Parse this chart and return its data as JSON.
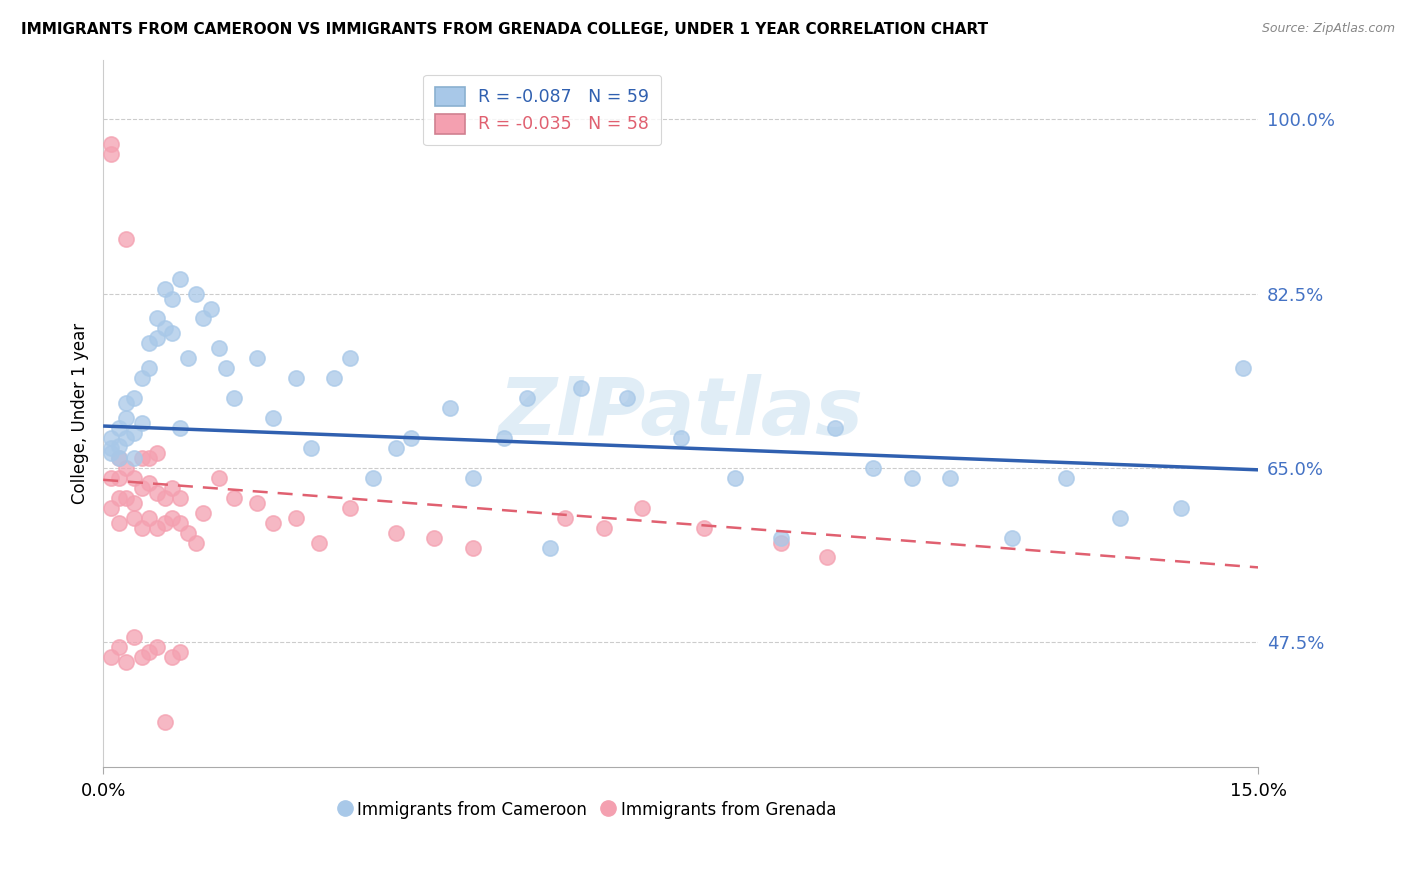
{
  "title": "IMMIGRANTS FROM CAMEROON VS IMMIGRANTS FROM GRENADA COLLEGE, UNDER 1 YEAR CORRELATION CHART",
  "source": "Source: ZipAtlas.com",
  "ylabel": "College, Under 1 year",
  "yticks": [
    0.475,
    0.65,
    0.825,
    1.0
  ],
  "ytick_labels": [
    "47.5%",
    "65.0%",
    "82.5%",
    "100.0%"
  ],
  "xmin": 0.0,
  "xmax": 0.15,
  "ymin": 0.35,
  "ymax": 1.06,
  "legend_blue_r": "R = -0.087",
  "legend_blue_n": "N = 59",
  "legend_pink_r": "R = -0.035",
  "legend_pink_n": "N = 58",
  "blue_color": "#a8c8e8",
  "pink_color": "#f4a0b0",
  "trendline_blue_color": "#3060b0",
  "trendline_pink_color": "#e06070",
  "watermark": "ZIPatlas",
  "blue_trend_x0": 0.0,
  "blue_trend_x1": 0.15,
  "blue_trend_y0": 0.692,
  "blue_trend_y1": 0.648,
  "pink_trend_x0": 0.0,
  "pink_trend_x1": 0.15,
  "pink_trend_y0": 0.638,
  "pink_trend_y1": 0.55,
  "blue_x": [
    0.001,
    0.001,
    0.001,
    0.002,
    0.002,
    0.002,
    0.003,
    0.003,
    0.003,
    0.004,
    0.004,
    0.004,
    0.005,
    0.005,
    0.006,
    0.006,
    0.007,
    0.007,
    0.008,
    0.008,
    0.009,
    0.009,
    0.01,
    0.01,
    0.011,
    0.012,
    0.013,
    0.014,
    0.015,
    0.016,
    0.017,
    0.02,
    0.022,
    0.025,
    0.027,
    0.03,
    0.032,
    0.035,
    0.038,
    0.04,
    0.045,
    0.048,
    0.052,
    0.055,
    0.058,
    0.062,
    0.068,
    0.075,
    0.082,
    0.088,
    0.095,
    0.1,
    0.105,
    0.11,
    0.118,
    0.125,
    0.132,
    0.14,
    0.148
  ],
  "blue_y": [
    0.665,
    0.67,
    0.68,
    0.66,
    0.672,
    0.69,
    0.68,
    0.7,
    0.715,
    0.66,
    0.685,
    0.72,
    0.695,
    0.74,
    0.75,
    0.775,
    0.78,
    0.8,
    0.79,
    0.83,
    0.785,
    0.82,
    0.69,
    0.84,
    0.76,
    0.825,
    0.8,
    0.81,
    0.77,
    0.75,
    0.72,
    0.76,
    0.7,
    0.74,
    0.67,
    0.74,
    0.76,
    0.64,
    0.67,
    0.68,
    0.71,
    0.64,
    0.68,
    0.72,
    0.57,
    0.73,
    0.72,
    0.68,
    0.64,
    0.58,
    0.69,
    0.65,
    0.64,
    0.64,
    0.58,
    0.64,
    0.6,
    0.61,
    0.75
  ],
  "pink_x": [
    0.001,
    0.001,
    0.001,
    0.001,
    0.002,
    0.002,
    0.002,
    0.002,
    0.003,
    0.003,
    0.003,
    0.004,
    0.004,
    0.004,
    0.005,
    0.005,
    0.005,
    0.006,
    0.006,
    0.006,
    0.007,
    0.007,
    0.007,
    0.008,
    0.008,
    0.009,
    0.009,
    0.01,
    0.01,
    0.011,
    0.012,
    0.013,
    0.015,
    0.017,
    0.02,
    0.022,
    0.025,
    0.028,
    0.032,
    0.038,
    0.043,
    0.048,
    0.06,
    0.065,
    0.07,
    0.078,
    0.088,
    0.094,
    0.001,
    0.002,
    0.003,
    0.004,
    0.005,
    0.006,
    0.007,
    0.008,
    0.009,
    0.01
  ],
  "pink_y": [
    0.965,
    0.975,
    0.64,
    0.61,
    0.66,
    0.64,
    0.62,
    0.595,
    0.88,
    0.65,
    0.62,
    0.6,
    0.64,
    0.615,
    0.66,
    0.63,
    0.59,
    0.66,
    0.635,
    0.6,
    0.665,
    0.625,
    0.59,
    0.62,
    0.595,
    0.63,
    0.6,
    0.62,
    0.595,
    0.585,
    0.575,
    0.605,
    0.64,
    0.62,
    0.615,
    0.595,
    0.6,
    0.575,
    0.61,
    0.585,
    0.58,
    0.57,
    0.6,
    0.59,
    0.61,
    0.59,
    0.575,
    0.56,
    0.46,
    0.47,
    0.455,
    0.48,
    0.46,
    0.465,
    0.47,
    0.395,
    0.46,
    0.465
  ]
}
